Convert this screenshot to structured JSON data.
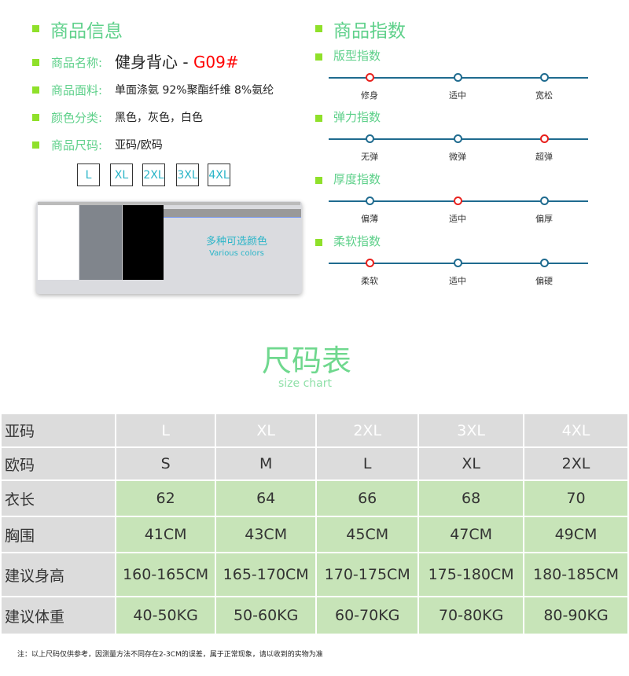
{
  "info": {
    "title": "商品信息",
    "name_label": "商品名称:",
    "name_value": "健身背心 - ",
    "name_code": "G09#",
    "fabric_label": "商品面料:",
    "fabric_value": "单面涤氨 92%聚酯纤维 8%氨纶",
    "color_label": "颜色分类:",
    "color_value": "黑色，灰色，白色",
    "size_label": "商品尺码:",
    "size_value": "亚码/欧码",
    "sizes": [
      "L",
      "XL",
      "2XL",
      "3XL",
      "4XL"
    ],
    "colors_cn": "多种可选颜色",
    "colors_en": "Various colors",
    "swatches": [
      "#ffffff",
      "#80858c",
      "#000000"
    ]
  },
  "index": {
    "title": "商品指数",
    "groups": [
      {
        "title": "版型指数",
        "options": [
          "修身",
          "适中",
          "宽松"
        ],
        "selected": 0
      },
      {
        "title": "弹力指数",
        "options": [
          "无弹",
          "微弹",
          "超弹"
        ],
        "selected": 2
      },
      {
        "title": "厚度指数",
        "options": [
          "偏薄",
          "适中",
          "偏厚"
        ],
        "selected": 1
      },
      {
        "title": "柔软指数",
        "options": [
          "柔软",
          "适中",
          "偏硬"
        ],
        "selected": 0
      }
    ]
  },
  "chart": {
    "title": "尺码表",
    "subtitle": "size chart",
    "rows": [
      {
        "label": "亚码",
        "cells": [
          "L",
          "XL",
          "2XL",
          "3XL",
          "4XL"
        ]
      },
      {
        "label": "欧码",
        "cells": [
          "S",
          "M",
          "L",
          "XL",
          "2XL"
        ]
      },
      {
        "label": "衣长",
        "cells": [
          "62",
          "64",
          "66",
          "68",
          "70"
        ]
      },
      {
        "label": "胸围",
        "cells": [
          "41CM",
          "43CM",
          "45CM",
          "47CM",
          "49CM"
        ]
      },
      {
        "label": "建议身高",
        "cells": [
          "160-165CM",
          "165-170CM",
          "170-175CM",
          "175-180CM",
          "180-185CM"
        ]
      },
      {
        "label": "建议体重",
        "cells": [
          "40-50KG",
          "50-60KG",
          "60-70KG",
          "70-80KG",
          "80-90KG"
        ]
      }
    ]
  },
  "note": "注：以上尺码仅供参考，因测量方法不同存在2-3CM的误差，属于正常现象，请以收到的实物为准"
}
